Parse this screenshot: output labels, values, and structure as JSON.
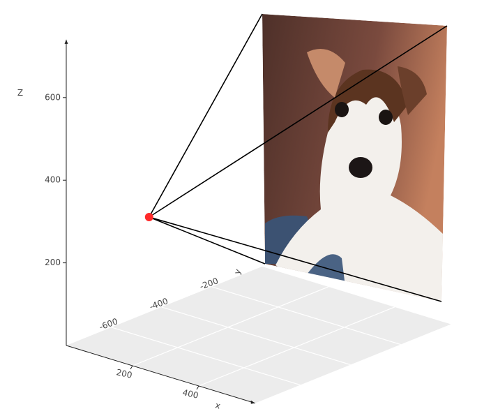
{
  "chart_data": {
    "type": "scatter3d",
    "xlabel": "x",
    "ylabel": "y",
    "zlabel": "Z",
    "xlim": [
      0,
      570
    ],
    "ylim": [
      -780,
      0
    ],
    "zlim": [
      0,
      740
    ],
    "xticks": [
      200,
      400
    ],
    "yticks": [
      -600,
      -400,
      -200
    ],
    "zticks": [
      200,
      400,
      600
    ],
    "grid": true,
    "series": [
      {
        "color": "#ff2a2a",
        "x": [
          0
        ],
        "y": [
          -450
        ],
        "z": [
          230
        ]
      }
    ]
  }
}
